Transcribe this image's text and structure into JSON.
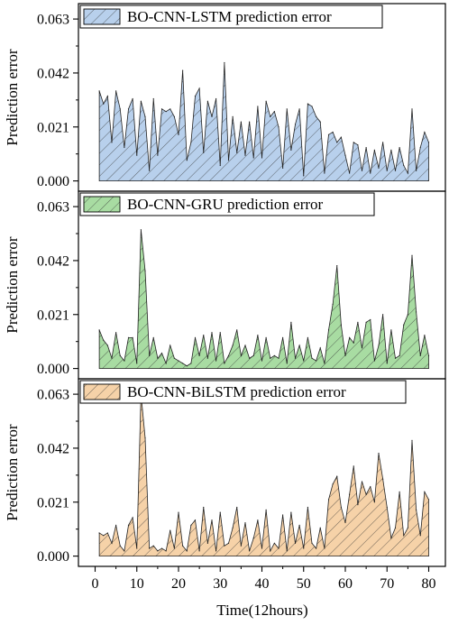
{
  "figure": {
    "xlabel": "Time(12hours)",
    "ylabel": "Prediction error",
    "xlim": [
      -4,
      84
    ],
    "xticks": [
      0,
      10,
      20,
      30,
      40,
      50,
      60,
      70,
      80
    ],
    "yticks": [
      0.0,
      0.021,
      0.042,
      0.063
    ],
    "ytick_labels": [
      "0.000",
      "0.021",
      "0.042",
      "0.063"
    ]
  },
  "chart_data": [
    {
      "type": "area",
      "title": "",
      "legend": "BO-CNN-LSTM prediction error",
      "fill_color": "#b8d0ec",
      "hatch": "diagonal",
      "ylim": [
        -0.004,
        0.069
      ],
      "x": [
        1,
        2,
        3,
        4,
        5,
        6,
        7,
        8,
        9,
        10,
        11,
        12,
        13,
        14,
        15,
        16,
        17,
        18,
        19,
        20,
        21,
        22,
        23,
        24,
        25,
        26,
        27,
        28,
        29,
        30,
        31,
        32,
        33,
        34,
        35,
        36,
        37,
        38,
        39,
        40,
        41,
        42,
        43,
        44,
        45,
        46,
        47,
        48,
        49,
        50,
        51,
        52,
        53,
        54,
        55,
        56,
        57,
        58,
        59,
        60,
        61,
        62,
        63,
        64,
        65,
        66,
        67,
        68,
        69,
        70,
        71,
        72,
        73,
        74,
        75,
        76,
        77,
        78,
        79,
        80
      ],
      "values": [
        0.035,
        0.03,
        0.033,
        0.015,
        0.035,
        0.028,
        0.013,
        0.028,
        0.032,
        0.01,
        0.031,
        0.025,
        0.004,
        0.032,
        0.01,
        0.028,
        0.027,
        0.028,
        0.025,
        0.018,
        0.043,
        0.008,
        0.015,
        0.033,
        0.036,
        0.011,
        0.031,
        0.025,
        0.032,
        0.006,
        0.046,
        0.008,
        0.025,
        0.011,
        0.023,
        0.01,
        0.023,
        0.009,
        0.029,
        0.009,
        0.031,
        0.025,
        0.027,
        0.021,
        0.005,
        0.028,
        0.012,
        0.022,
        0.028,
        0.002,
        0.03,
        0.029,
        0.025,
        0.023,
        0.003,
        0.018,
        0.019,
        0.015,
        0.017,
        0.01,
        0.003,
        0.015,
        0.014,
        0.004,
        0.013,
        0.003,
        0.012,
        0.005,
        0.015,
        0.004,
        0.012,
        0.004,
        0.013,
        0.006,
        0.003,
        0.028,
        0.004,
        0.013,
        0.019,
        0.015
      ]
    },
    {
      "type": "area",
      "title": "",
      "legend": "BO-CNN-GRU prediction error",
      "fill_color": "#a8dca2",
      "hatch": "diagonal",
      "ylim": [
        -0.004,
        0.069
      ],
      "x": [
        1,
        2,
        3,
        4,
        5,
        6,
        7,
        8,
        9,
        10,
        11,
        12,
        13,
        14,
        15,
        16,
        17,
        18,
        19,
        20,
        21,
        22,
        23,
        24,
        25,
        26,
        27,
        28,
        29,
        30,
        31,
        32,
        33,
        34,
        35,
        36,
        37,
        38,
        39,
        40,
        41,
        42,
        43,
        44,
        45,
        46,
        47,
        48,
        49,
        50,
        51,
        52,
        53,
        54,
        55,
        56,
        57,
        58,
        59,
        60,
        61,
        62,
        63,
        64,
        65,
        66,
        67,
        68,
        69,
        70,
        71,
        72,
        73,
        74,
        75,
        76,
        77,
        78,
        79,
        80
      ],
      "values": [
        0.015,
        0.011,
        0.009,
        0.004,
        0.014,
        0.005,
        0.003,
        0.012,
        0.012,
        0.002,
        0.054,
        0.038,
        0.005,
        0.012,
        0.004,
        0.006,
        0.002,
        0.009,
        0.004,
        0.003,
        0.002,
        0.001,
        0.002,
        0.012,
        0.005,
        0.013,
        0.004,
        0.014,
        0.003,
        0.014,
        0.002,
        0.005,
        0.009,
        0.015,
        0.005,
        0.009,
        0.004,
        0.005,
        0.013,
        0.003,
        0.012,
        0.004,
        0.005,
        0.004,
        0.012,
        0.002,
        0.018,
        0.004,
        0.009,
        0.003,
        0.012,
        0.004,
        0.003,
        0.008,
        0.002,
        0.015,
        0.025,
        0.04,
        0.017,
        0.005,
        0.012,
        0.01,
        0.018,
        0.008,
        0.018,
        0.019,
        0.003,
        0.009,
        0.021,
        0.002,
        0.015,
        0.004,
        0.005,
        0.017,
        0.021,
        0.044,
        0.022,
        0.005,
        0.013,
        0.005
      ]
    },
    {
      "type": "area",
      "title": "",
      "legend": "BO-CNN-BiLSTM prediction error",
      "fill_color": "#f6d2a8",
      "hatch": "diagonal",
      "ylim": [
        -0.004,
        0.069
      ],
      "x": [
        1,
        2,
        3,
        4,
        5,
        6,
        7,
        8,
        9,
        10,
        11,
        12,
        13,
        14,
        15,
        16,
        17,
        18,
        19,
        20,
        21,
        22,
        23,
        24,
        25,
        26,
        27,
        28,
        29,
        30,
        31,
        32,
        33,
        34,
        35,
        36,
        37,
        38,
        39,
        40,
        41,
        42,
        43,
        44,
        45,
        46,
        47,
        48,
        49,
        50,
        51,
        52,
        53,
        54,
        55,
        56,
        57,
        58,
        59,
        60,
        61,
        62,
        63,
        64,
        65,
        66,
        67,
        68,
        69,
        70,
        71,
        72,
        73,
        74,
        75,
        76,
        77,
        78,
        79,
        80
      ],
      "values": [
        0.009,
        0.008,
        0.009,
        0.005,
        0.012,
        0.004,
        0.002,
        0.012,
        0.015,
        0.003,
        0.063,
        0.046,
        0.003,
        0.004,
        0.002,
        0.003,
        0.002,
        0.01,
        0.003,
        0.017,
        0.004,
        0.002,
        0.012,
        0.014,
        0.002,
        0.019,
        0.005,
        0.014,
        0.002,
        0.017,
        0.004,
        0.005,
        0.011,
        0.019,
        0.004,
        0.013,
        0.002,
        0.007,
        0.014,
        0.003,
        0.018,
        0.002,
        0.005,
        0.003,
        0.016,
        0.002,
        0.017,
        0.005,
        0.012,
        0.003,
        0.019,
        0.005,
        0.003,
        0.011,
        0.003,
        0.022,
        0.028,
        0.031,
        0.019,
        0.013,
        0.024,
        0.035,
        0.02,
        0.029,
        0.024,
        0.027,
        0.021,
        0.04,
        0.03,
        0.019,
        0.007,
        0.011,
        0.025,
        0.008,
        0.011,
        0.045,
        0.018,
        0.008,
        0.025,
        0.022
      ]
    }
  ]
}
